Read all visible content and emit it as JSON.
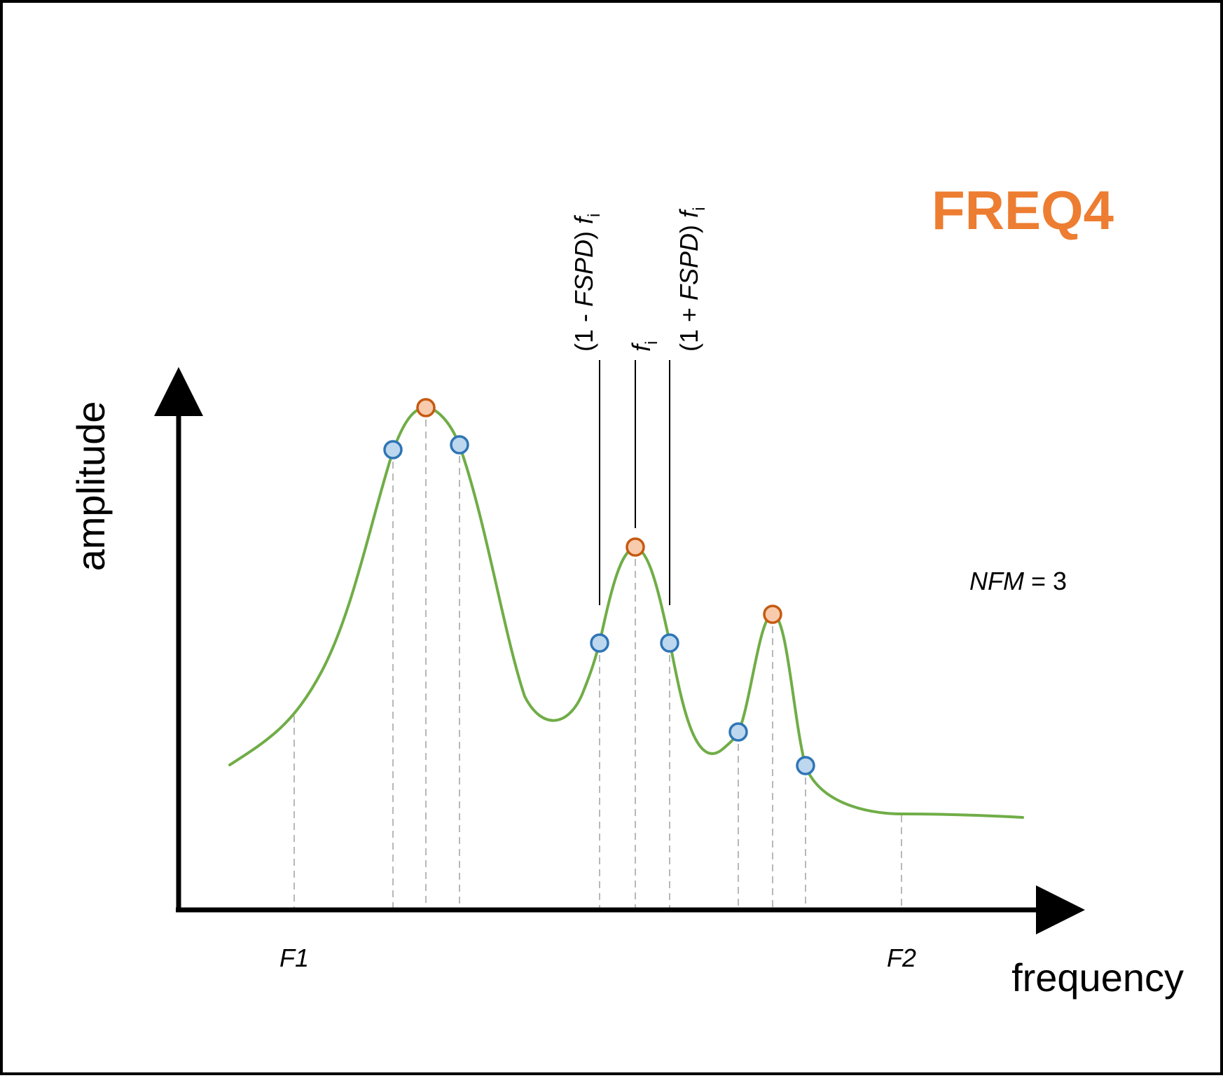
{
  "title": "FREQ4",
  "colors": {
    "title": "#ED7D31",
    "curve": "#70AD47",
    "peak_fill": "#F8CBAD",
    "peak_stroke": "#C55A11",
    "sample_fill": "#BDD7EE",
    "sample_stroke": "#2E75B6",
    "guide": "#A6A6A6",
    "axis": "#000000"
  },
  "axes": {
    "x_label": "frequency",
    "y_label": "amplitude",
    "f1": "F1",
    "f2": "F2"
  },
  "annotations": {
    "nfm_name": "NFM",
    "nfm_rest": " = 3",
    "lower_prefix": "(1 - ",
    "lower_var": "FSPD",
    "lower_suffix": ") ",
    "center_f": "f",
    "sub_i": "i",
    "upper_prefix": "(1 + ",
    "upper_var": "FSPD",
    "upper_suffix": ") "
  },
  "points": {
    "peaks": [
      "peak-1",
      "peak-2",
      "peak-3"
    ],
    "samples": [
      "sample-1a",
      "sample-1b",
      "sample-2a",
      "sample-2b",
      "sample-3a",
      "sample-3b"
    ]
  }
}
